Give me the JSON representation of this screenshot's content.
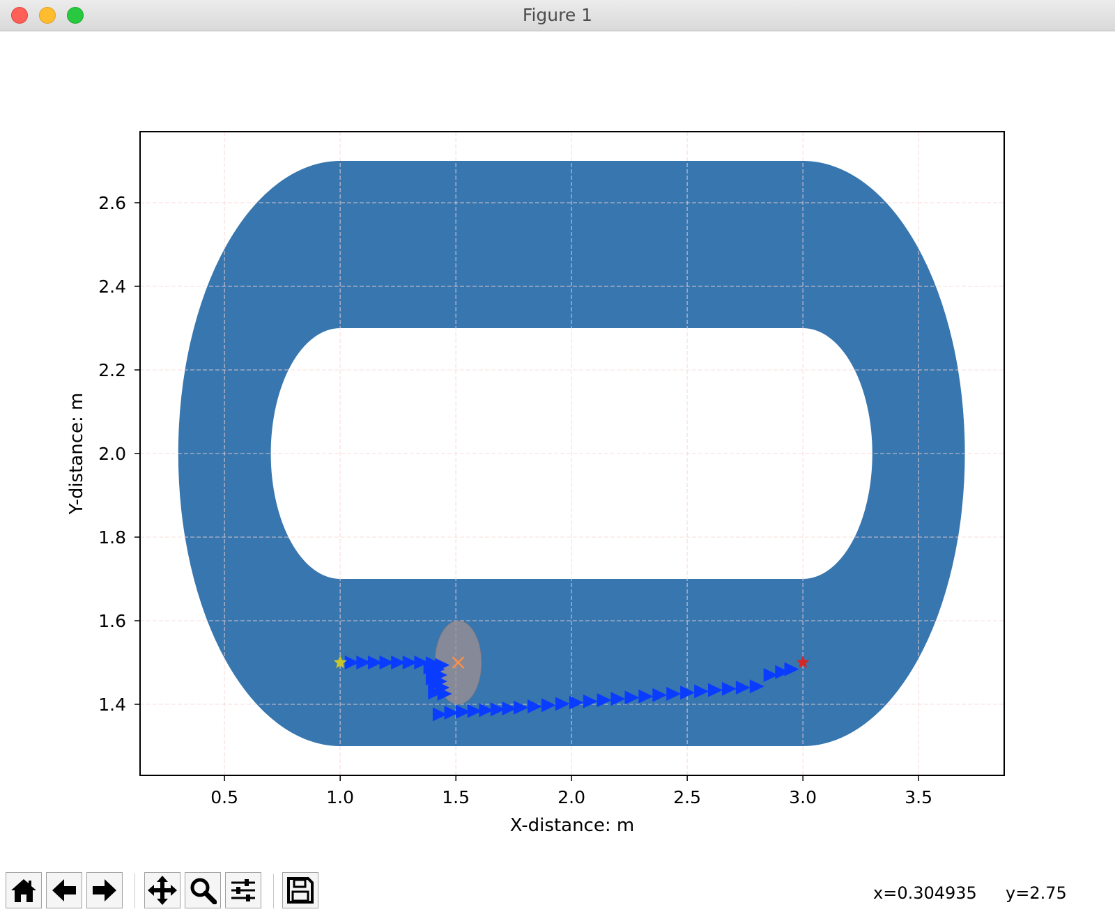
{
  "window": {
    "title": "Figure 1"
  },
  "toolbar": {
    "buttons": [
      {
        "icon": "home-icon"
      },
      {
        "icon": "back-arrow-icon"
      },
      {
        "icon": "forward-arrow-icon"
      },
      {
        "icon": "pan-icon"
      },
      {
        "icon": "zoom-icon"
      },
      {
        "icon": "configure-subplots-icon"
      },
      {
        "icon": "save-icon"
      }
    ],
    "coord_x": "x=0.304935",
    "coord_y": "y=2.75"
  },
  "chart_data": {
    "type": "scatter",
    "title": "",
    "xlabel": "X-distance: m",
    "ylabel": "Y-distance: m",
    "xlim": [
      0.135,
      3.87
    ],
    "ylim": [
      1.23,
      2.77
    ],
    "xticks": [
      "0.5",
      "1.0",
      "1.5",
      "2.0",
      "2.5",
      "3.0",
      "3.5"
    ],
    "yticks": [
      "1.4",
      "1.6",
      "1.8",
      "2.0",
      "2.2",
      "2.4",
      "2.6"
    ],
    "grid": true,
    "grid_color": "#f7d5d5",
    "track": {
      "color": "#3776ae",
      "outer": {
        "straight_x": [
          1.0,
          3.0
        ],
        "y_range": [
          1.3,
          2.7
        ],
        "left_extreme_x": 0.3,
        "right_extreme_x": 3.7
      },
      "inner": {
        "straight_x": [
          1.0,
          3.0
        ],
        "y_range": [
          1.7,
          2.3
        ],
        "left_extreme_x": 0.7,
        "right_extreme_x": 3.3
      }
    },
    "start": {
      "x": 1.0,
      "y": 1.5,
      "marker": "star",
      "color": "#c7c72a"
    },
    "goal": {
      "x": 3.0,
      "y": 1.5,
      "marker": "star",
      "color": "#d62728"
    },
    "obstacle": {
      "x": 1.51,
      "y": 1.5,
      "rx": 0.1,
      "ry": 0.1,
      "marker": "x",
      "color": "#ff8c47",
      "fill": "#a09090"
    },
    "path_color": "#0a3cff",
    "path": [
      [
        1.05,
        1.5
      ],
      [
        1.1,
        1.5
      ],
      [
        1.15,
        1.5
      ],
      [
        1.2,
        1.5
      ],
      [
        1.25,
        1.5
      ],
      [
        1.3,
        1.5
      ],
      [
        1.35,
        1.5
      ],
      [
        1.4,
        1.498
      ],
      [
        1.44,
        1.494
      ],
      [
        1.39,
        1.488
      ],
      [
        1.42,
        1.484
      ],
      [
        1.4,
        1.476
      ],
      [
        1.43,
        1.47
      ],
      [
        1.4,
        1.462
      ],
      [
        1.43,
        1.455
      ],
      [
        1.41,
        1.448
      ],
      [
        1.44,
        1.44
      ],
      [
        1.41,
        1.428
      ],
      [
        1.45,
        1.425
      ],
      [
        1.43,
        1.376
      ],
      [
        1.48,
        1.38
      ],
      [
        1.53,
        1.382
      ],
      [
        1.58,
        1.384
      ],
      [
        1.63,
        1.386
      ],
      [
        1.68,
        1.388
      ],
      [
        1.73,
        1.39
      ],
      [
        1.78,
        1.392
      ],
      [
        1.84,
        1.395
      ],
      [
        1.9,
        1.398
      ],
      [
        1.96,
        1.401
      ],
      [
        2.02,
        1.404
      ],
      [
        2.08,
        1.407
      ],
      [
        2.14,
        1.41
      ],
      [
        2.2,
        1.413
      ],
      [
        2.26,
        1.416
      ],
      [
        2.32,
        1.419
      ],
      [
        2.38,
        1.422
      ],
      [
        2.44,
        1.425
      ],
      [
        2.5,
        1.428
      ],
      [
        2.56,
        1.431
      ],
      [
        2.62,
        1.434
      ],
      [
        2.68,
        1.437
      ],
      [
        2.74,
        1.44
      ],
      [
        2.8,
        1.443
      ],
      [
        2.86,
        1.47
      ],
      [
        2.91,
        1.477
      ],
      [
        2.95,
        1.484
      ]
    ]
  }
}
